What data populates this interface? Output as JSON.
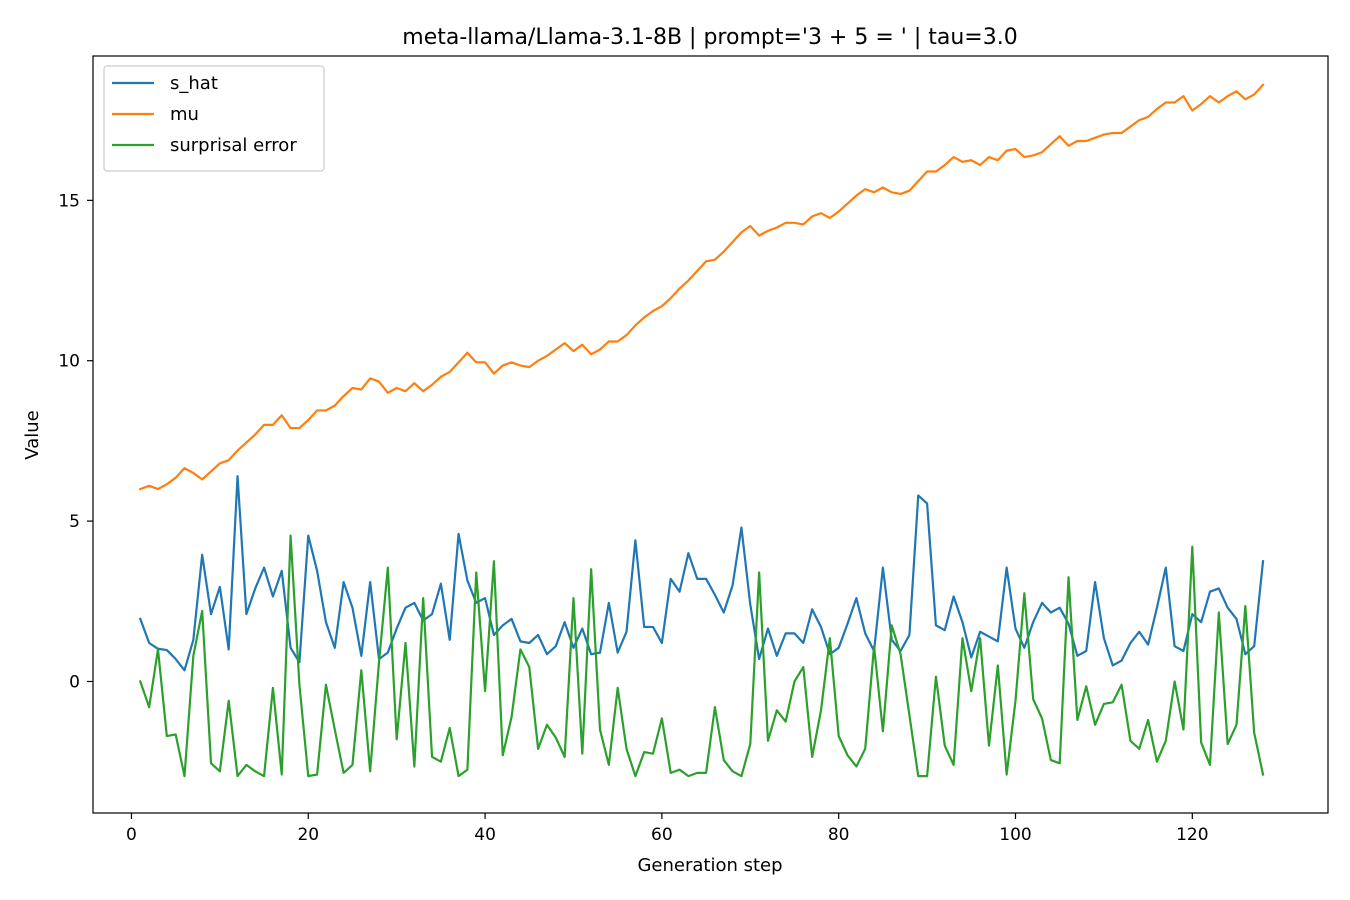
{
  "chart_data": {
    "type": "line",
    "title": "meta-llama/Llama-3.1-8B | prompt='3 + 5 = ' | tau=3.0",
    "xlabel": "Generation step",
    "ylabel": "Value",
    "xlim": [
      -4.35,
      135.35
    ],
    "ylim": [
      -4.1,
      19.5
    ],
    "xticks": [
      0,
      20,
      40,
      60,
      80,
      100,
      120
    ],
    "yticks": [
      0,
      5,
      10,
      15
    ],
    "grid": false,
    "legend": {
      "placement": "upper-left",
      "entries": [
        "s_hat",
        "mu",
        "surprisal error"
      ]
    },
    "x": [
      1,
      2,
      3,
      4,
      5,
      6,
      7,
      8,
      9,
      10,
      11,
      12,
      13,
      14,
      15,
      16,
      17,
      18,
      19,
      20,
      21,
      22,
      23,
      24,
      25,
      26,
      27,
      28,
      29,
      30,
      31,
      32,
      33,
      34,
      35,
      36,
      37,
      38,
      39,
      40,
      41,
      42,
      43,
      44,
      45,
      46,
      47,
      48,
      49,
      50,
      51,
      52,
      53,
      54,
      55,
      56,
      57,
      58,
      59,
      60,
      61,
      62,
      63,
      64,
      65,
      66,
      67,
      68,
      69,
      70,
      71,
      72,
      73,
      74,
      75,
      76,
      77,
      78,
      79,
      80,
      81,
      82,
      83,
      84,
      85,
      86,
      87,
      88,
      89,
      90,
      91,
      92,
      93,
      94,
      95,
      96,
      97,
      98,
      99,
      100,
      101,
      102,
      103,
      104,
      105,
      106,
      107,
      108,
      109,
      110,
      111,
      112,
      113,
      114,
      115,
      116,
      117,
      118,
      119,
      120,
      121,
      122,
      123,
      124,
      125,
      126,
      127,
      128
    ],
    "series": [
      {
        "name": "s_hat",
        "color": "#1f77b4",
        "values": [
          1.95,
          1.2,
          1.02,
          0.98,
          0.7,
          0.35,
          1.3,
          3.95,
          2.1,
          2.95,
          1.0,
          6.4,
          2.1,
          2.9,
          3.55,
          2.65,
          3.45,
          1.05,
          0.6,
          4.55,
          3.45,
          1.85,
          1.05,
          3.1,
          2.3,
          0.8,
          3.1,
          0.7,
          0.9,
          1.65,
          2.3,
          2.45,
          1.9,
          2.1,
          3.05,
          1.3,
          4.6,
          3.15,
          2.45,
          2.6,
          1.45,
          1.75,
          1.95,
          1.25,
          1.2,
          1.45,
          0.85,
          1.1,
          1.85,
          1.05,
          1.65,
          0.85,
          0.9,
          2.45,
          0.9,
          1.55,
          4.4,
          1.7,
          1.7,
          1.2,
          3.2,
          2.8,
          4.0,
          3.2,
          3.2,
          2.7,
          2.15,
          3.0,
          4.8,
          2.4,
          0.7,
          1.65,
          0.8,
          1.5,
          1.5,
          1.2,
          2.25,
          1.7,
          0.85,
          1.05,
          1.8,
          2.6,
          1.5,
          0.95,
          3.55,
          1.3,
          0.95,
          1.45,
          5.8,
          5.55,
          1.75,
          1.6,
          2.65,
          1.85,
          0.75,
          1.55,
          1.4,
          1.25,
          3.55,
          1.65,
          1.05,
          1.85,
          2.45,
          2.15,
          2.3,
          1.8,
          0.8,
          0.95,
          3.1,
          1.35,
          0.5,
          0.65,
          1.2,
          1.55,
          1.15,
          2.3,
          3.55,
          1.1,
          0.95,
          2.1,
          1.85,
          2.8,
          2.9,
          2.3,
          1.95,
          0.85,
          1.1,
          3.75
        ]
      },
      {
        "name": "mu",
        "color": "#ff7f0e",
        "values": [
          6.0,
          6.1,
          6.0,
          6.15,
          6.35,
          6.65,
          6.5,
          6.3,
          6.55,
          6.8,
          6.9,
          7.2,
          7.45,
          7.7,
          8.0,
          8.0,
          8.3,
          7.9,
          7.9,
          8.15,
          8.45,
          8.45,
          8.6,
          8.9,
          9.15,
          9.1,
          9.45,
          9.35,
          9.0,
          9.15,
          9.05,
          9.3,
          9.05,
          9.25,
          9.5,
          9.65,
          9.95,
          10.25,
          9.95,
          9.95,
          9.6,
          9.85,
          9.95,
          9.85,
          9.8,
          10.0,
          10.15,
          10.35,
          10.55,
          10.3,
          10.5,
          10.2,
          10.35,
          10.6,
          10.6,
          10.8,
          11.1,
          11.35,
          11.55,
          11.7,
          11.95,
          12.25,
          12.5,
          12.8,
          13.1,
          13.15,
          13.4,
          13.7,
          14.0,
          14.2,
          13.9,
          14.05,
          14.15,
          14.3,
          14.3,
          14.25,
          14.5,
          14.6,
          14.45,
          14.65,
          14.9,
          15.15,
          15.35,
          15.25,
          15.4,
          15.25,
          15.2,
          15.3,
          15.6,
          15.9,
          15.9,
          16.1,
          16.35,
          16.2,
          16.25,
          16.1,
          16.35,
          16.25,
          16.55,
          16.6,
          16.35,
          16.4,
          16.5,
          16.75,
          17.0,
          16.7,
          16.85,
          16.85,
          16.95,
          17.05,
          17.1,
          17.1,
          17.3,
          17.5,
          17.6,
          17.85,
          18.05,
          18.05,
          18.25,
          17.8,
          18.0,
          18.25,
          18.05,
          18.25,
          18.4,
          18.15,
          18.3,
          18.6
        ]
      },
      {
        "name": "surprisal error",
        "color": "#2ca02c",
        "values": [
          0.0,
          -0.8,
          1.0,
          -1.7,
          -1.65,
          -2.95,
          0.8,
          2.2,
          -2.55,
          -2.8,
          -0.6,
          -2.95,
          -2.6,
          -2.8,
          -2.95,
          -0.2,
          -2.9,
          4.55,
          -0.1,
          -2.95,
          -2.9,
          -0.1,
          -1.5,
          -2.85,
          -2.6,
          0.35,
          -2.8,
          0.6,
          3.55,
          -1.8,
          1.2,
          -2.65,
          2.6,
          -2.35,
          -2.5,
          -1.45,
          -2.95,
          -2.75,
          3.4,
          -0.3,
          3.75,
          -2.3,
          -1.1,
          1.0,
          0.45,
          -2.1,
          -1.35,
          -1.75,
          -2.35,
          2.6,
          -2.25,
          3.5,
          -1.5,
          -2.6,
          -0.2,
          -2.1,
          -2.95,
          -2.2,
          -2.25,
          -1.15,
          -2.85,
          -2.75,
          -2.95,
          -2.85,
          -2.85,
          -0.8,
          -2.45,
          -2.8,
          -2.95,
          -1.95,
          3.4,
          -1.85,
          -0.9,
          -1.25,
          0.0,
          0.45,
          -2.35,
          -0.9,
          1.35,
          -1.7,
          -2.3,
          -2.65,
          -2.1,
          1.1,
          -1.55,
          1.75,
          0.85,
          -1.05,
          -2.95,
          -2.95,
          0.15,
          -2.0,
          -2.6,
          1.35,
          -0.3,
          1.35,
          -2.0,
          0.5,
          -2.9,
          -0.6,
          2.75,
          -0.55,
          -1.15,
          -2.45,
          -2.55,
          3.25,
          -1.2,
          -0.15,
          -1.35,
          -0.7,
          -0.65,
          -0.1,
          -1.85,
          -2.1,
          -1.2,
          -2.5,
          -1.85,
          0.0,
          -1.5,
          4.2,
          -1.9,
          -2.6,
          2.15,
          -1.95,
          -1.35,
          2.35,
          -1.6,
          -2.9
        ]
      }
    ]
  }
}
